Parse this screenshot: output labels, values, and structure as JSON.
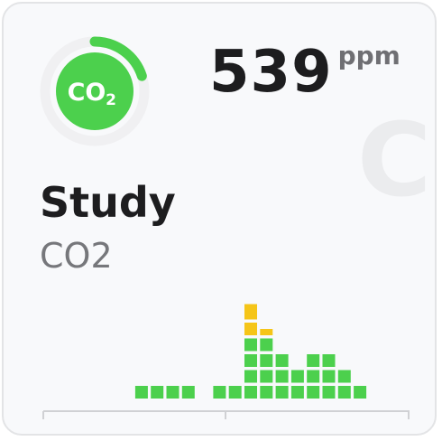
{
  "sensor": {
    "name": "Study",
    "type": "CO2",
    "value": "539",
    "unit": "ppm",
    "badge_main": "CO",
    "badge_sub": "2",
    "watermark": "CO",
    "gauge_fraction": 0.2,
    "status_color": "#4cd04d"
  },
  "colors": {
    "good": "#4cd04d",
    "warn": "#f5c518",
    "track": "#f0f0f2",
    "card_bg": "#f8f9fb",
    "text_primary": "#1d1d1f",
    "text_secondary": "#76777b"
  },
  "history": {
    "bars": [
      {
        "green": 0,
        "yellow": 0
      },
      {
        "green": 0,
        "yellow": 0
      },
      {
        "green": 0,
        "yellow": 0
      },
      {
        "green": 1,
        "yellow": 0
      },
      {
        "green": 1,
        "yellow": 0
      },
      {
        "green": 1,
        "yellow": 0
      },
      {
        "green": 1,
        "yellow": 0
      },
      {
        "green": 0,
        "yellow": 0
      },
      {
        "green": 1,
        "yellow": 0
      },
      {
        "green": 1,
        "yellow": 0
      },
      {
        "green": 4,
        "yellow": 2
      },
      {
        "green": 4,
        "yellow": 1
      },
      {
        "green": 3,
        "yellow": 0
      },
      {
        "green": 2,
        "yellow": 0
      },
      {
        "green": 3,
        "yellow": 0
      },
      {
        "green": 3,
        "yellow": 0
      },
      {
        "green": 2,
        "yellow": 0
      },
      {
        "green": 1,
        "yellow": 0
      },
      {
        "green": 0,
        "yellow": 0
      },
      {
        "green": 0,
        "yellow": 0
      },
      {
        "green": 0,
        "yellow": 0
      },
      {
        "green": 0,
        "yellow": 0
      },
      {
        "green": 0,
        "yellow": 0
      },
      {
        "green": 0,
        "yellow": 0
      }
    ]
  }
}
